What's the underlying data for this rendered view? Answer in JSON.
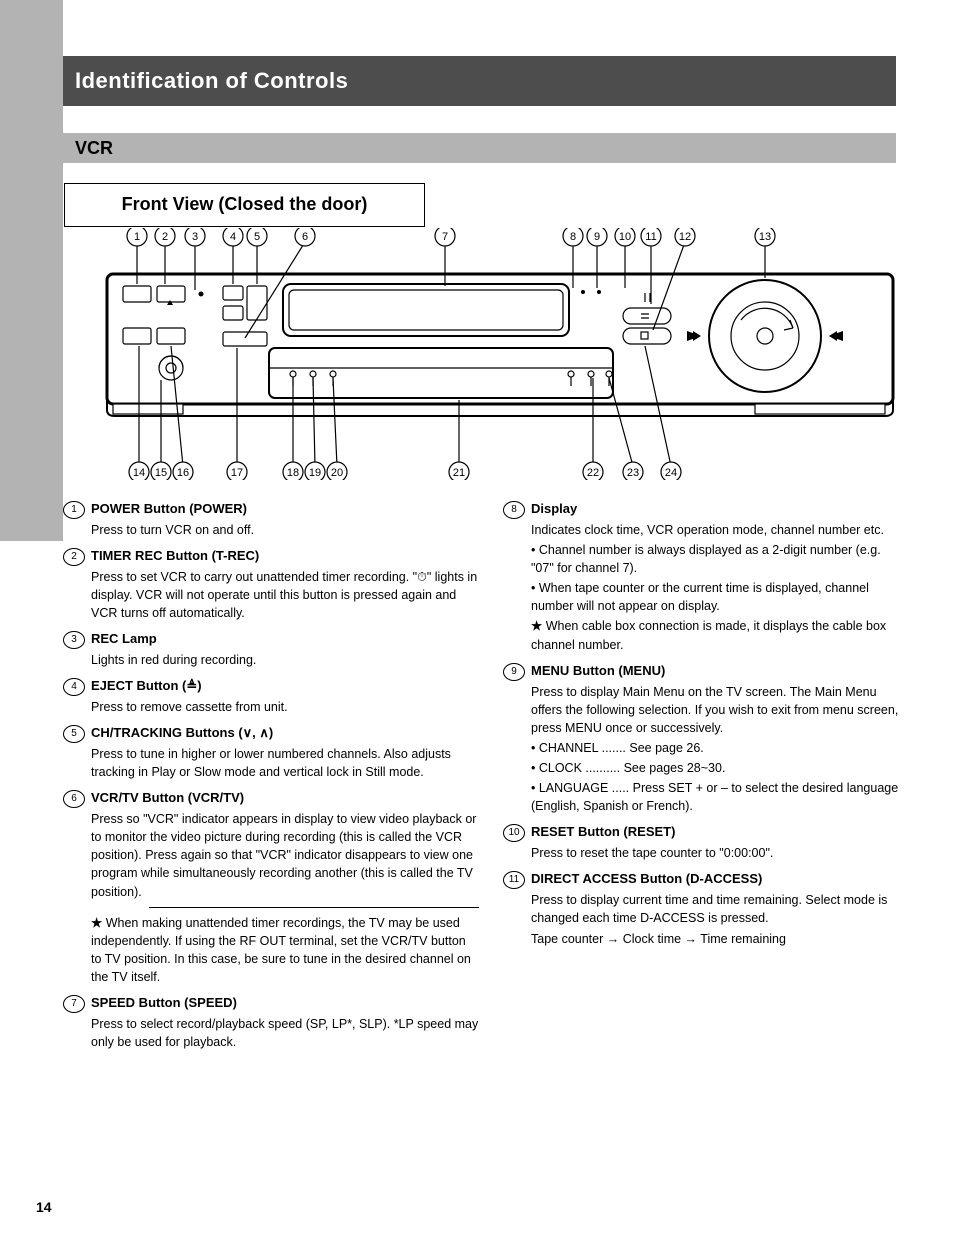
{
  "page_number": "14",
  "title": "Identification of Controls",
  "subtitle": "VCR",
  "front_label": "Front View (Closed the door)",
  "callouts_top": [
    "1",
    "2",
    "3",
    "4",
    "5",
    "6",
    "7",
    "8",
    "9",
    "10",
    "11",
    "12",
    "13"
  ],
  "callouts_bottom": [
    "14",
    "15",
    "16",
    "17",
    "18",
    "19",
    "20",
    "21",
    "22",
    "23",
    "24"
  ],
  "diagram_colors": {
    "stroke": "#000000",
    "fill": "#ffffff",
    "page_bg": "#ffffff",
    "left_bar": "#b3b3b3",
    "title_bg": "#4d4d4d",
    "title_fg": "#ffffff"
  },
  "left": [
    {
      "n": "1",
      "title": "POWER Button (POWER)",
      "desc": "Press to turn VCR on and off."
    },
    {
      "n": "2",
      "title": "TIMER REC Button (T-REC)",
      "desc": "Press to set VCR to carry out unattended timer recording. \"⏱\" lights in display. VCR will not operate until this button is pressed again and VCR turns off automatically."
    },
    {
      "n": "3",
      "title": "REC Lamp",
      "desc": "Lights in red during recording."
    },
    {
      "n": "4",
      "title": "EJECT Button (≜)",
      "desc": "Press to remove cassette from unit."
    },
    {
      "n": "5",
      "title": "CH/TRACKING Buttons (∨, ∧)",
      "desc": "Press to tune in higher or lower numbered channels. Also adjusts tracking in Play or Slow mode and vertical lock in Still mode."
    },
    {
      "n": "6",
      "title": "VCR/TV Button (VCR/TV)",
      "desc": "Press so \"VCR\" indicator appears in display to view video playback or to monitor the video picture during recording (this is called the VCR position). Press again so that \"VCR\" indicator disappears to view one program while simultaneously recording another (this is called the TV position).",
      "star": "When making unattended timer recordings, the TV may be used independently. If using the RF OUT terminal, set the VCR/TV button to TV position. In this case, be sure to tune in the desired channel on the TV itself.",
      "hrBefore": true
    },
    {
      "n": "7",
      "title": "SPEED Button (SPEED)",
      "desc": "Press to select record/playback speed (SP, LP*, SLP). *LP speed may only be used for playback."
    }
  ],
  "right": [
    {
      "n": "8",
      "title": "Display",
      "desc": "Indicates clock time, VCR operation mode, channel number etc.",
      "sub": [
        "Channel number is always displayed as a 2-digit number (e.g. \"07\" for channel 7).",
        "When tape counter or the current time is displayed, channel number will not appear on display."
      ],
      "star": "When cable box connection is made, it displays the cable box channel number."
    },
    {
      "n": "9",
      "title": "MENU Button (MENU)",
      "desc": "Press to display Main Menu on the TV screen. The Main Menu offers the following selection. If you wish to exit from menu screen, press MENU once or successively.",
      "sub": [
        "CHANNEL ....... See page 26.",
        "CLOCK .......... See pages 28~30.",
        "LANGUAGE ..... Press SET + or – to select the desired language (English, Spanish or French)."
      ]
    },
    {
      "n": "10",
      "title": "RESET Button (RESET)",
      "desc": "Press to reset the tape counter to \"0:00:00\"."
    },
    {
      "n": "11",
      "title": "DIRECT ACCESS Button (D-ACCESS)",
      "desc": "Press to display current time and time remaining. Select mode is changed each time D-ACCESS is pressed.",
      "flow": "Tape counter → Clock time → Time remaining"
    }
  ]
}
